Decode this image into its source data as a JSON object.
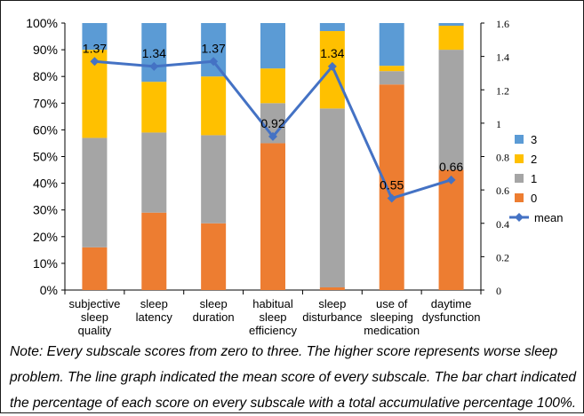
{
  "chart_data": {
    "type": "bar",
    "stacked": true,
    "percent_stacked": true,
    "secondary_type": "line",
    "categories": [
      "subjective sleep quality",
      "sleep latency",
      "sleep duration",
      "habitual sleep efficiency",
      "sleep disturbance",
      "use of sleeping medication",
      "daytime dysfunction"
    ],
    "category_labels": [
      [
        "subjective",
        "sleep",
        "quality"
      ],
      [
        "sleep",
        "latency"
      ],
      [
        "sleep",
        "duration"
      ],
      [
        "habitual",
        "sleep",
        "efficiency"
      ],
      [
        "sleep",
        "disturbance"
      ],
      [
        "use of",
        "sleeping",
        "medication"
      ],
      [
        "daytime",
        "dysfunction"
      ]
    ],
    "series": [
      {
        "name": "0",
        "color": "#ED7D31",
        "values": [
          16,
          29,
          25,
          55,
          1,
          77,
          45
        ]
      },
      {
        "name": "1",
        "color": "#A5A5A5",
        "values": [
          41,
          30,
          33,
          15,
          67,
          5,
          45
        ]
      },
      {
        "name": "2",
        "color": "#FFC000",
        "values": [
          33,
          19,
          22,
          13,
          29,
          2,
          9
        ]
      },
      {
        "name": "3",
        "color": "#5B9BD5",
        "values": [
          10,
          22,
          20,
          17,
          3,
          16,
          1
        ]
      }
    ],
    "line_series": {
      "name": "mean",
      "color": "#4472C4",
      "values": [
        1.37,
        1.34,
        1.37,
        0.92,
        1.34,
        0.55,
        0.66
      ]
    },
    "line_labels": [
      "1.37",
      "1.34",
      "1.37",
      "0.92",
      "1.34",
      "0.55",
      "0.66"
    ],
    "y_left": {
      "lim": [
        0,
        100
      ],
      "ticks": [
        "0%",
        "10%",
        "20%",
        "30%",
        "40%",
        "50%",
        "60%",
        "70%",
        "80%",
        "90%",
        "100%"
      ]
    },
    "y_right": {
      "lim": [
        0,
        1.6
      ],
      "ticks": [
        "0",
        "0.2",
        "0.4",
        "0.6",
        "0.8",
        "1",
        "1.2",
        "1.4",
        "1.6"
      ]
    },
    "legend_order": [
      "3",
      "2",
      "1",
      "0",
      "mean"
    ],
    "legend_position": "right",
    "grid": false
  },
  "note": "Note: Every subscale scores from zero to three. The higher score represents worse sleep problem. The line graph indicated the mean score of every subscale. The bar chart indicated the percentage of each score on every subscale with a total accumulative percentage 100%."
}
